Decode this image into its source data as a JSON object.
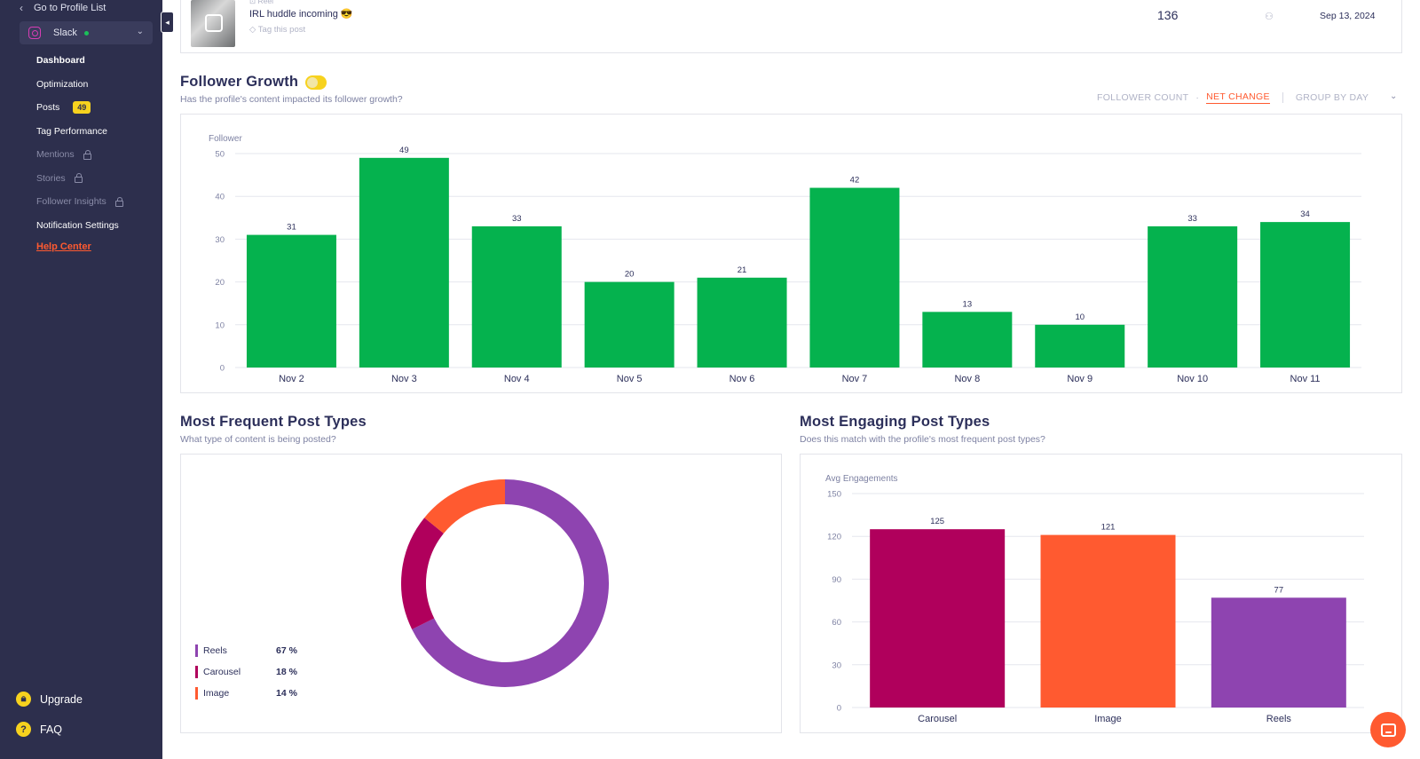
{
  "sidebar": {
    "back_label": "Go to Profile List",
    "profile_name": "Slack",
    "nav": [
      {
        "label": "Dashboard",
        "locked": false
      },
      {
        "label": "Optimization",
        "locked": false
      },
      {
        "label": "Posts",
        "locked": false,
        "badge": "49"
      },
      {
        "label": "Tag Performance",
        "locked": false
      },
      {
        "label": "Mentions",
        "locked": true
      },
      {
        "label": "Stories",
        "locked": true
      },
      {
        "label": "Follower Insights",
        "locked": true
      },
      {
        "label": "Notification Settings",
        "locked": false
      }
    ],
    "help_label": "Help Center",
    "upgrade_label": "Upgrade",
    "faq_label": "FAQ"
  },
  "post_row": {
    "type": "Reel",
    "title": "IRL huddle incoming 😎",
    "tag_label": "Tag this post",
    "metric": "136",
    "date": "Sep 13, 2024"
  },
  "follower_growth": {
    "title": "Follower Growth",
    "subtitle": "Has the profile's content impacted its follower growth?",
    "controls": {
      "follower_count": "FOLLOWER COUNT",
      "net_change": "NET CHANGE",
      "group_by": "GROUP BY DAY"
    }
  },
  "frequent_types": {
    "title": "Most Frequent Post Types",
    "subtitle": "What type of content is being posted?"
  },
  "engaging_types": {
    "title": "Most Engaging Post Types",
    "subtitle": "Does this match with the profile's most frequent post types?"
  },
  "colors": {
    "green": "#05b24e",
    "reels": "#8e44b0",
    "carousel": "#b0005c",
    "image": "#ff5a30",
    "accent": "#ff5a30",
    "sidebar": "#2d2f4d"
  },
  "chart_data": [
    {
      "type": "bar",
      "ylabel": "Follower",
      "ylim": [
        0,
        50
      ],
      "yticks": [
        0,
        10,
        20,
        30,
        40,
        50
      ],
      "grid": true,
      "categories": [
        "Nov 2",
        "Nov 3",
        "Nov 4",
        "Nov 5",
        "Nov 6",
        "Nov 7",
        "Nov 8",
        "Nov 9",
        "Nov 10",
        "Nov 11"
      ],
      "values": [
        31,
        49,
        33,
        20,
        21,
        42,
        13,
        10,
        33,
        34
      ]
    },
    {
      "type": "pie",
      "donut": true,
      "legend": "bottom-left",
      "series": [
        {
          "name": "Reels",
          "value": 67,
          "label": "67 %",
          "color": "#8e44b0"
        },
        {
          "name": "Carousel",
          "value": 18,
          "label": "18 %",
          "color": "#b0005c"
        },
        {
          "name": "Image",
          "value": 14,
          "label": "14 %",
          "color": "#ff5a30"
        }
      ]
    },
    {
      "type": "bar",
      "ylabel": "Avg Engagements",
      "ylim": [
        0,
        150
      ],
      "yticks": [
        0,
        30,
        60,
        90,
        120,
        150
      ],
      "grid": true,
      "categories": [
        "Carousel",
        "Image",
        "Reels"
      ],
      "values": [
        125,
        121,
        77
      ],
      "colors": [
        "#b0005c",
        "#ff5a30",
        "#8e44b0"
      ]
    }
  ]
}
